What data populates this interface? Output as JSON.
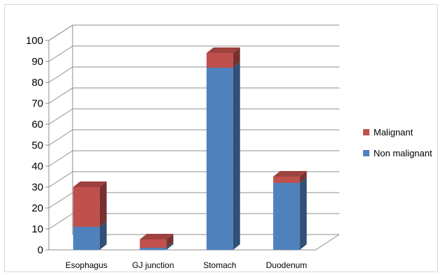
{
  "chart_data": {
    "type": "bar",
    "stacked": true,
    "three_d": true,
    "categories": [
      "Esophagus",
      "GJ junction",
      "Stomach",
      "Duodenum"
    ],
    "series": [
      {
        "name": "Non malignant",
        "values": [
          11,
          1,
          87,
          32
        ],
        "color": "#4f81bd"
      },
      {
        "name": "Malignant",
        "values": [
          19,
          4,
          7,
          3
        ],
        "color": "#c0504d"
      }
    ],
    "ylim": [
      0,
      100
    ],
    "yticks": [
      0,
      10,
      20,
      30,
      40,
      50,
      60,
      70,
      80,
      90,
      100
    ],
    "legend_position": "right",
    "grid": true,
    "legend_order": [
      "Malignant",
      "Non malignant"
    ]
  }
}
